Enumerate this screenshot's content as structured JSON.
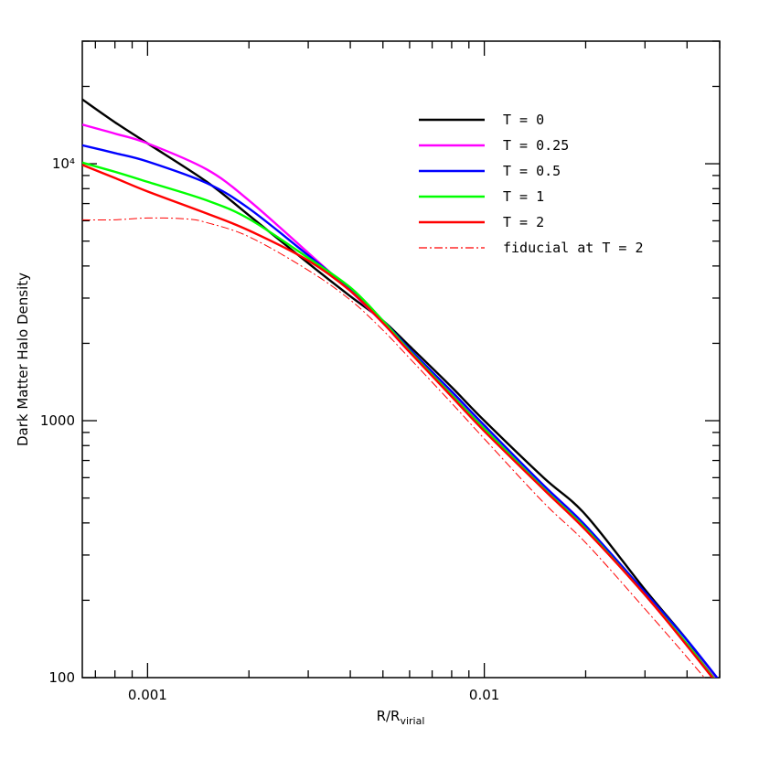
{
  "chart_data": {
    "type": "line",
    "xlabel": "R/R",
    "xlabel_sub": "virial",
    "ylabel": "Dark Matter Halo Density",
    "x_scale": "log",
    "y_scale": "log",
    "xlim": [
      0.00064,
      0.05
    ],
    "ylim": [
      100,
      30000
    ],
    "x_ticks": [
      {
        "value": 0.001,
        "label": "0.001"
      },
      {
        "value": 0.01,
        "label": "0.01"
      }
    ],
    "y_ticks": [
      {
        "value": 100,
        "label": "100"
      },
      {
        "value": 1000,
        "label": "1000"
      },
      {
        "value": 10000,
        "label": "10⁴"
      }
    ],
    "legend_position": "top-right",
    "series": [
      {
        "name": "T = 0",
        "color": "#000000",
        "dash": "solid",
        "points": [
          [
            0.00064,
            17800
          ],
          [
            0.0008,
            14500
          ],
          [
            0.001,
            12000
          ],
          [
            0.0015,
            8500
          ],
          [
            0.002,
            6300
          ],
          [
            0.003,
            4100
          ],
          [
            0.004,
            3050
          ],
          [
            0.005,
            2450
          ],
          [
            0.006,
            1950
          ],
          [
            0.008,
            1350
          ],
          [
            0.01,
            1000
          ],
          [
            0.015,
            600
          ],
          [
            0.02,
            430
          ],
          [
            0.03,
            220
          ],
          [
            0.04,
            140
          ],
          [
            0.05,
            95
          ]
        ]
      },
      {
        "name": "T = 0.25",
        "color": "#ff00ff",
        "dash": "solid",
        "points": [
          [
            0.00064,
            14200
          ],
          [
            0.0008,
            13100
          ],
          [
            0.001,
            12000
          ],
          [
            0.0015,
            9500
          ],
          [
            0.002,
            7200
          ],
          [
            0.003,
            4500
          ],
          [
            0.004,
            3200
          ],
          [
            0.005,
            2400
          ],
          [
            0.006,
            1850
          ],
          [
            0.008,
            1280
          ],
          [
            0.01,
            950
          ],
          [
            0.015,
            560
          ],
          [
            0.02,
            390
          ],
          [
            0.03,
            210
          ],
          [
            0.04,
            135
          ],
          [
            0.05,
            95
          ]
        ]
      },
      {
        "name": "T = 0.5",
        "color": "#0000ff",
        "dash": "solid",
        "points": [
          [
            0.00064,
            11800
          ],
          [
            0.0008,
            11000
          ],
          [
            0.001,
            10200
          ],
          [
            0.0015,
            8400
          ],
          [
            0.002,
            6700
          ],
          [
            0.003,
            4400
          ],
          [
            0.004,
            3250
          ],
          [
            0.005,
            2450
          ],
          [
            0.006,
            1900
          ],
          [
            0.008,
            1300
          ],
          [
            0.01,
            960
          ],
          [
            0.015,
            560
          ],
          [
            0.02,
            390
          ],
          [
            0.03,
            215
          ],
          [
            0.04,
            140
          ],
          [
            0.05,
            97
          ]
        ]
      },
      {
        "name": "T = 1",
        "color": "#00ff00",
        "dash": "solid",
        "points": [
          [
            0.00064,
            10100
          ],
          [
            0.0008,
            9300
          ],
          [
            0.001,
            8500
          ],
          [
            0.0015,
            7200
          ],
          [
            0.002,
            6100
          ],
          [
            0.003,
            4300
          ],
          [
            0.004,
            3300
          ],
          [
            0.005,
            2450
          ],
          [
            0.006,
            1870
          ],
          [
            0.008,
            1260
          ],
          [
            0.01,
            930
          ],
          [
            0.015,
            545
          ],
          [
            0.02,
            380
          ],
          [
            0.03,
            210
          ],
          [
            0.04,
            135
          ],
          [
            0.05,
            93
          ]
        ]
      },
      {
        "name": "T = 2",
        "color": "#ff0000",
        "dash": "solid",
        "points": [
          [
            0.00064,
            9900
          ],
          [
            0.0008,
            8800
          ],
          [
            0.001,
            7800
          ],
          [
            0.0015,
            6400
          ],
          [
            0.002,
            5500
          ],
          [
            0.003,
            4200
          ],
          [
            0.004,
            3200
          ],
          [
            0.005,
            2400
          ],
          [
            0.006,
            1850
          ],
          [
            0.008,
            1240
          ],
          [
            0.01,
            910
          ],
          [
            0.015,
            540
          ],
          [
            0.02,
            375
          ],
          [
            0.03,
            210
          ],
          [
            0.04,
            133
          ],
          [
            0.05,
            92
          ]
        ]
      },
      {
        "name": "fiducial at T = 2",
        "color": "#ff0000",
        "dash": "dashdot",
        "points": [
          [
            0.00064,
            6050
          ],
          [
            0.0008,
            6050
          ],
          [
            0.001,
            6150
          ],
          [
            0.0013,
            6100
          ],
          [
            0.0015,
            5900
          ],
          [
            0.002,
            5200
          ],
          [
            0.003,
            3850
          ],
          [
            0.004,
            2950
          ],
          [
            0.005,
            2250
          ],
          [
            0.006,
            1750
          ],
          [
            0.008,
            1170
          ],
          [
            0.01,
            850
          ],
          [
            0.015,
            480
          ],
          [
            0.02,
            335
          ],
          [
            0.03,
            185
          ],
          [
            0.04,
            120
          ],
          [
            0.05,
            85
          ]
        ]
      }
    ]
  }
}
